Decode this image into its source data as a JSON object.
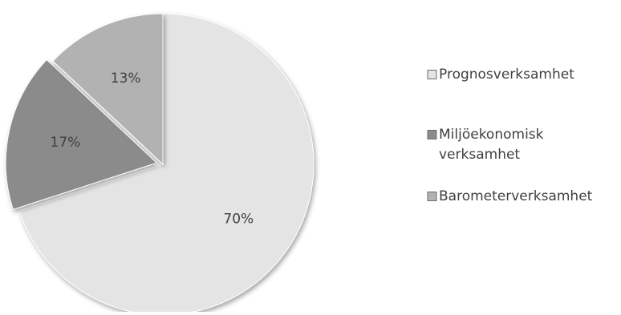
{
  "chart_data": {
    "type": "pie",
    "categories": [
      "Prognosverksamhet",
      "Miljöekonomisk verksamhet",
      "Barometerverksamhet"
    ],
    "values": [
      70,
      17,
      13
    ],
    "labels": [
      "70%",
      "17%",
      "13%"
    ],
    "colors": [
      "#e4e4e4",
      "#8b8b8b",
      "#b2b2b2"
    ],
    "legend": {
      "position": "right",
      "entries": [
        [
          "Prognosverksamhet"
        ],
        [
          "Miljöekonomisk",
          "verksamhet"
        ],
        [
          "Barometerverksamhet"
        ]
      ]
    },
    "exploded_slice": 1
  }
}
